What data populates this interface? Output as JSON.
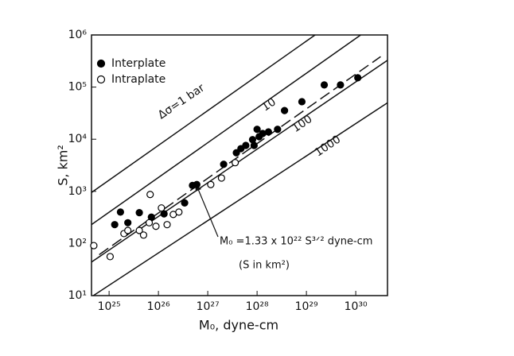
{
  "chart_data": {
    "type": "scatter",
    "xlabel": "M₀, dyne-cm",
    "ylabel": "S, km²",
    "xscale": "log",
    "yscale": "log",
    "xlim": [
      4.4e+24,
      4.4e+30
    ],
    "ylim": [
      10,
      1000000
    ],
    "xticks": [
      {
        "value": 1e+25,
        "label": "10²⁵"
      },
      {
        "value": 1e+26,
        "label": "10²⁶"
      },
      {
        "value": 1e+27,
        "label": "10²⁷"
      },
      {
        "value": 1e+28,
        "label": "10²⁸"
      },
      {
        "value": 1e+29,
        "label": "10²⁹"
      },
      {
        "value": 1e+30,
        "label": "10³⁰"
      }
    ],
    "yticks": [
      {
        "value": 10,
        "label": "10¹"
      },
      {
        "value": 100,
        "label": "10²"
      },
      {
        "value": 1000,
        "label": "10³"
      },
      {
        "value": 10000,
        "label": "10⁴"
      },
      {
        "value": 100000,
        "label": "10⁵"
      },
      {
        "value": 1000000,
        "label": "10⁶"
      }
    ],
    "legend": "upper left",
    "series": [
      {
        "name": "Interplate",
        "color": "#000000",
        "filled": true,
        "x": [
          1.3e+25,
          1.7e+25,
          2.4e+25,
          4.1e+25,
          7.2e+25,
          1.3e+26,
          3.4e+26,
          4.9e+26,
          6e+26,
          2.1e+27,
          3.8e+27,
          4.7e+27,
          5.9e+27,
          8.1e+27,
          8.7e+27,
          1e+28,
          1.1e+28,
          1.3e+28,
          1.7e+28,
          2.6e+28,
          3.6e+28,
          8.1e+28,
          2.3e+29,
          4.9e+29,
          1.1e+30
        ],
        "y": [
          230,
          400,
          250,
          390,
          320,
          370,
          600,
          1300,
          1350,
          3300,
          5500,
          6600,
          7600,
          9800,
          7600,
          15500,
          11200,
          12900,
          13800,
          15500,
          35500,
          52500,
          110000,
          110000,
          151000
        ]
      },
      {
        "name": "Intraplate",
        "color": "#000000",
        "filled": false,
        "x": [
          4.9e+24,
          1.05e+25,
          2e+25,
          2.4e+25,
          4.1e+25,
          5e+25,
          6.5e+25,
          6.8e+25,
          8.9e+25,
          1.15e+26,
          1.5e+26,
          2e+26,
          2.6e+26,
          1.15e+27,
          1.9e+27,
          3.6e+27
        ],
        "y": [
          91,
          56,
          155,
          178,
          178,
          145,
          250,
          870,
          214,
          480,
          230,
          360,
          400,
          1350,
          1800,
          3550
        ]
      }
    ],
    "lines": [
      {
        "label": "Δσ=1 bar",
        "dashed": false,
        "x": [
          4.4e+24,
          1.5e+29
        ],
        "y": [
          950,
          1000000
        ]
      },
      {
        "label": "10",
        "dashed": false,
        "x": [
          4.4e+24,
          1.26e+30
        ],
        "y": [
          230,
          1000000
        ]
      },
      {
        "label": "100",
        "dashed": false,
        "x": [
          4.4e+24,
          4.4e+30
        ],
        "y": [
          44,
          327000
        ]
      },
      {
        "label": "1000",
        "dashed": false,
        "x": [
          4.8e+24,
          4.4e+30
        ],
        "y": [
          10,
          50000
        ]
      },
      {
        "dashed": true,
        "x": [
          6.3e+24,
          3.2e+30
        ],
        "y": [
          61,
          384000
        ]
      }
    ],
    "annotations": [
      "M₀ =1.33 x 10²² S³ᐟ² dyne-cm",
      "(S in km²)"
    ]
  }
}
